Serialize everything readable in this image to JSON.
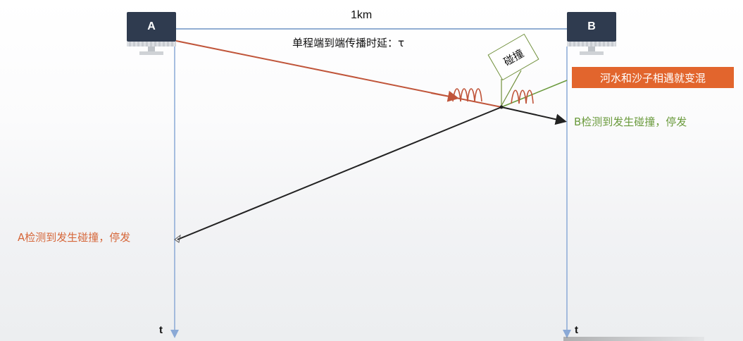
{
  "stations": {
    "a": {
      "label": "A",
      "icon": "computer-icon"
    },
    "b": {
      "label": "B",
      "icon": "computer-icon"
    }
  },
  "distance_label": "1km",
  "delay_label": "单程端到端传播时延：τ",
  "collision_label": "碰撞",
  "note_label": "河水和沙子相遇就变混",
  "b_detect_label": "B检测到发生碰撞，停发",
  "a_detect_label": "A检测到发生碰撞，停发",
  "time_axis_labels": {
    "a": "t",
    "b": "t"
  },
  "colors": {
    "screen": "#2f3b4f",
    "distance_line": "#6f93c4",
    "time_axis": "#8aa9d6",
    "signal_a": "#c0553a",
    "signal_b": "#222222",
    "note_bg": "#e2652d",
    "green": "#6a9a3c",
    "orange_text": "#d6673a"
  }
}
